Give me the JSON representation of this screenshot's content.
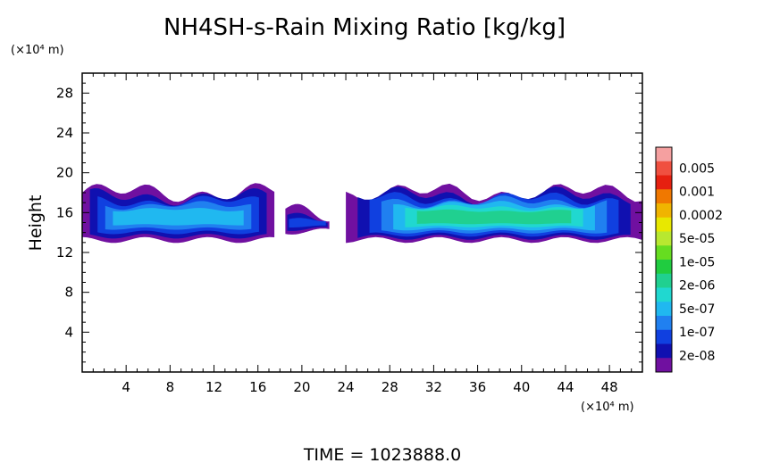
{
  "chart_data": {
    "type": "heatmap",
    "title": "NH4SH-s-Rain Mixing Ratio [kg/kg]",
    "ylabel": "Height",
    "x_unit_label": "(×10⁴ m)",
    "y_unit_label": "(×10⁴ m)",
    "xlim": [
      0,
      51
    ],
    "ylim": [
      0,
      30
    ],
    "x_ticks": [
      4,
      8,
      12,
      16,
      20,
      24,
      28,
      32,
      36,
      40,
      44,
      48
    ],
    "y_ticks": [
      4,
      8,
      12,
      16,
      20,
      24,
      28
    ],
    "colorbar": {
      "labels": [
        "0.005",
        "0.001",
        "0.0002",
        "5e-05",
        "1e-05",
        "2e-06",
        "5e-07",
        "1e-07",
        "2e-08"
      ],
      "colors_top_to_bottom": [
        "#f5a0a0",
        "#f05040",
        "#e62010",
        "#f07800",
        "#f0b400",
        "#e8e800",
        "#b8e830",
        "#66dd20",
        "#20cc40",
        "#20d090",
        "#20d8d0",
        "#20b8f0",
        "#2080f0",
        "#1040e0",
        "#1010b0",
        "#7010a0"
      ]
    },
    "regions": [
      {
        "name": "left-band",
        "x_range": [
          0,
          17.5
        ],
        "core_height": 15.5,
        "thickness": 5,
        "peak_level": 4
      },
      {
        "name": "middle-blob",
        "x_range": [
          18.5,
          22.5
        ],
        "core_height": 15,
        "thickness": 2,
        "peak_level": 2
      },
      {
        "name": "right-band",
        "x_range": [
          24,
          51
        ],
        "core_height": 15.5,
        "thickness": 5,
        "peak_level": 6
      }
    ],
    "grid": false,
    "legend": "right"
  },
  "footer": {
    "time_label": "TIME  =  1023888.0"
  }
}
